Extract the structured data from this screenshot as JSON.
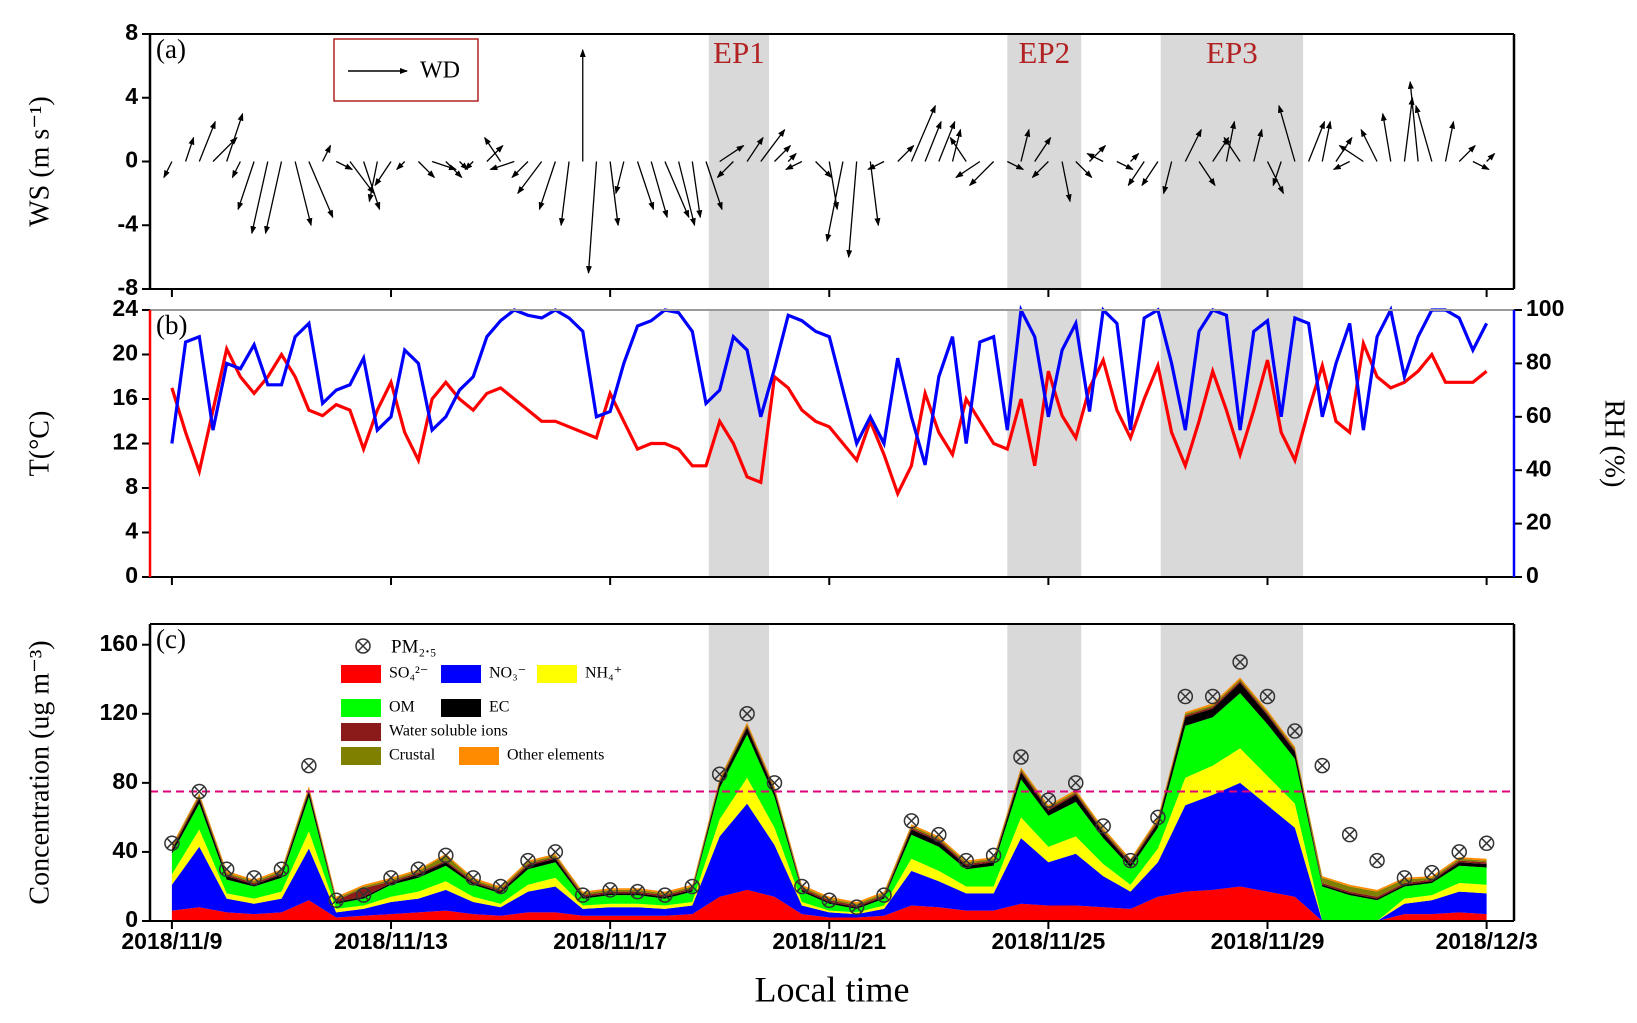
{
  "chart_data": [
    {
      "type": "arrow",
      "label": "(a)",
      "ylabel": "WS (m s⁻¹)",
      "wd_legend": "WD",
      "xlim": [
        8.6,
        33.5
      ],
      "ylim": [
        -8,
        8
      ],
      "yticks": [
        -8,
        -4,
        0,
        4,
        8
      ],
      "shaded": [
        {
          "label": "EP1",
          "start": 18.8,
          "end": 19.9
        },
        {
          "label": "EP2",
          "start": 24.25,
          "end": 25.6
        },
        {
          "label": "EP3",
          "start": 27.05,
          "end": 29.65
        }
      ],
      "x": [
        9,
        9.25,
        9.5,
        9.75,
        10,
        10.25,
        10.5,
        10.75,
        11,
        11.25,
        11.5,
        11.75,
        12,
        12.25,
        12.5,
        12.75,
        13,
        13.25,
        13.5,
        13.75,
        14,
        14.25,
        14.5,
        14.75,
        15,
        15.25,
        15.5,
        15.75,
        16,
        16.25,
        16.5,
        16.75,
        17,
        17.25,
        17.5,
        17.75,
        18,
        18.25,
        18.5,
        18.75,
        19,
        19.25,
        19.5,
        19.75,
        20,
        20.25,
        20.5,
        20.75,
        21,
        21.25,
        21.5,
        21.75,
        22,
        22.25,
        22.5,
        22.75,
        23,
        23.25,
        23.5,
        23.75,
        24,
        24.25,
        24.5,
        24.75,
        25,
        25.25,
        25.5,
        25.75,
        26,
        26.25,
        26.5,
        26.75,
        27,
        27.25,
        27.5,
        27.75,
        28,
        28.25,
        28.5,
        28.75,
        29,
        29.25,
        29.5,
        29.75,
        30,
        30.25,
        30.5,
        30.75,
        31,
        31.25,
        31.5,
        31.75,
        32,
        32.25,
        32.5,
        32.75,
        33
      ],
      "values": [
        -1,
        1.5,
        2.5,
        1.5,
        3,
        -1,
        -3,
        -4.5,
        -4.5,
        -4,
        -3.5,
        1,
        -0.5,
        -2,
        -3,
        -2.5,
        -1.5,
        -0.5,
        -1,
        -0.5,
        -1,
        -0.5,
        -0.5,
        1,
        1.5,
        -0.5,
        -1,
        -2,
        -3,
        -4,
        7,
        -7,
        -4,
        -2,
        -3,
        -3.5,
        -3.5,
        -4,
        -3.5,
        -3,
        1,
        -1,
        1.5,
        2,
        1,
        0.5,
        -0.5,
        -1,
        -3,
        -5,
        -6,
        -4,
        -0.5,
        1,
        3.5,
        2.5,
        2.5,
        2,
        1.5,
        -1,
        -1.5,
        -0.5,
        2,
        1.5,
        -1,
        -2.5,
        -1,
        1,
        0.5,
        -0.5,
        0.5,
        -1.5,
        -1.5,
        -2,
        2,
        -1.5,
        1.5,
        2.5,
        1.5,
        2,
        -2,
        -1.5,
        3.5,
        2.5,
        2.5,
        1.5,
        -0.5,
        1,
        2,
        3,
        4,
        5,
        3.5,
        2.5,
        1,
        -0.5,
        0.5
      ],
      "u": [
        -0.5,
        0.5,
        1,
        1.5,
        1,
        -0.5,
        -1,
        -1,
        -1,
        1,
        1.5,
        0.5,
        1,
        1.5,
        1,
        -0.5,
        -1,
        -0.5,
        1,
        1.5,
        1,
        0.5,
        -0.5,
        1,
        -1,
        -1.5,
        -1,
        -1.5,
        -1,
        -0.5,
        0,
        -0.5,
        0.5,
        -0.5,
        1,
        1,
        1.5,
        1,
        0.5,
        1,
        1.5,
        -1,
        1,
        1.5,
        1,
        0.5,
        -1,
        1,
        0.5,
        -1,
        -0.5,
        0.5,
        -1,
        1,
        1.5,
        1,
        1,
        0.5,
        -1,
        -1.5,
        -1.5,
        1,
        0.5,
        1,
        -1,
        0.5,
        1,
        1,
        -1,
        1,
        0.5,
        -1,
        -1,
        -0.5,
        1,
        1,
        1,
        0.5,
        -1,
        0.5,
        1,
        -0.5,
        -1,
        1,
        0.5,
        1,
        -1,
        -1.5,
        -1,
        -0.5,
        0.5,
        -0.5,
        -1,
        0.5,
        1,
        1,
        0.5
      ]
    },
    {
      "type": "line",
      "label": "(b)",
      "ylabel": "T(°C)",
      "y2label": "RH (%)",
      "xlim": [
        8.6,
        33.5
      ],
      "ylim": [
        0,
        24
      ],
      "yticks": [
        0,
        4,
        8,
        12,
        16,
        20,
        24
      ],
      "y2lim": [
        0,
        100
      ],
      "y2ticks": [
        0,
        20,
        40,
        60,
        80,
        100
      ],
      "x": [
        9,
        9.25,
        9.5,
        9.75,
        10,
        10.25,
        10.5,
        10.75,
        11,
        11.25,
        11.5,
        11.75,
        12,
        12.25,
        12.5,
        12.75,
        13,
        13.25,
        13.5,
        13.75,
        14,
        14.25,
        14.5,
        14.75,
        15,
        15.25,
        15.5,
        15.75,
        16,
        16.25,
        16.5,
        16.75,
        17,
        17.25,
        17.5,
        17.75,
        18,
        18.25,
        18.5,
        18.75,
        19,
        19.25,
        19.5,
        19.75,
        20,
        20.25,
        20.5,
        20.75,
        21,
        21.25,
        21.5,
        21.75,
        22,
        22.25,
        22.5,
        22.75,
        23,
        23.25,
        23.5,
        23.75,
        24,
        24.25,
        24.5,
        24.75,
        25,
        25.25,
        25.5,
        25.75,
        26,
        26.25,
        26.5,
        26.75,
        27,
        27.25,
        27.5,
        27.75,
        28,
        28.25,
        28.5,
        28.75,
        29,
        29.25,
        29.5,
        29.75,
        30,
        30.25,
        30.5,
        30.75,
        31,
        31.25,
        31.5,
        31.75,
        32,
        32.25,
        32.5,
        32.75,
        33
      ],
      "series": [
        {
          "color": "#ff0000",
          "values": [
            17,
            13,
            9.5,
            15,
            20.5,
            18,
            16.5,
            18,
            20,
            18,
            15,
            14.5,
            15.5,
            15,
            11.5,
            15,
            17.5,
            13,
            10.5,
            16,
            17.5,
            16,
            15,
            16.5,
            17,
            16,
            15,
            14,
            14,
            13.5,
            13,
            12.5,
            16.5,
            14,
            11.5,
            12,
            12,
            11.5,
            10,
            10,
            14,
            12,
            9,
            8.5,
            18,
            17,
            15,
            14,
            13.5,
            12,
            10.5,
            14,
            11,
            7.5,
            10,
            16.5,
            13,
            11,
            16,
            14,
            12,
            11.5,
            16,
            10,
            18.5,
            14.5,
            12.5,
            17,
            19.5,
            15,
            12.5,
            16,
            19,
            13,
            10,
            14,
            18.5,
            15,
            11,
            15,
            19.5,
            13,
            10.5,
            15,
            19,
            14,
            13,
            21,
            18,
            17,
            17.5,
            18.5,
            20,
            17.5,
            17.5,
            17.5,
            18.5
          ]
        },
        {
          "color": "#0000ff",
          "axis": "y2",
          "values": [
            50,
            88,
            90,
            55,
            80,
            78,
            87,
            72,
            72,
            90,
            95,
            65,
            70,
            72,
            82,
            55,
            60,
            85,
            80,
            55,
            60,
            70,
            75,
            90,
            96,
            100,
            98,
            97,
            100,
            97,
            92,
            60,
            62,
            80,
            94,
            96,
            100,
            99,
            92,
            65,
            70,
            90,
            85,
            60,
            78,
            98,
            96,
            92,
            90,
            70,
            50,
            60,
            50,
            82,
            60,
            42,
            75,
            90,
            50,
            88,
            90,
            55,
            100,
            90,
            60,
            85,
            95,
            62,
            100,
            95,
            55,
            97,
            100,
            80,
            55,
            92,
            100,
            98,
            55,
            92,
            96,
            60,
            97,
            95,
            60,
            80,
            95,
            55,
            90,
            100,
            75,
            90,
            100,
            100,
            97,
            85,
            95
          ]
        }
      ]
    },
    {
      "type": "area",
      "label": "(c)",
      "ylabel": "Concentration (ug m⁻³)",
      "xlabel": "Local time",
      "xlim": [
        8.6,
        33.5
      ],
      "ylim": [
        0,
        172
      ],
      "yticks": [
        0,
        40,
        80,
        120,
        160
      ],
      "threshold": 75,
      "xticks": [
        {
          "value": 9,
          "label": "2018/11/9"
        },
        {
          "value": 13,
          "label": "2018/11/13"
        },
        {
          "value": 17,
          "label": "2018/11/17"
        },
        {
          "value": 21,
          "label": "2018/11/21"
        },
        {
          "value": 25,
          "label": "2018/11/25"
        },
        {
          "value": 29,
          "label": "2018/11/29"
        },
        {
          "value": 33,
          "label": "2018/12/3"
        }
      ],
      "x": [
        9,
        9.5,
        10,
        10.5,
        11,
        11.5,
        12,
        12.5,
        13,
        13.5,
        14,
        14.5,
        15,
        15.5,
        16,
        16.5,
        17,
        17.5,
        18,
        18.5,
        19,
        19.5,
        20,
        20.5,
        21,
        21.5,
        22,
        22.5,
        23,
        23.5,
        24,
        24.5,
        25,
        25.5,
        26,
        26.5,
        27,
        27.5,
        28,
        28.5,
        29,
        29.5,
        30,
        30.5,
        31,
        31.5,
        32,
        32.5,
        33
      ],
      "pm25": {
        "name": "PM₂.₅",
        "values": [
          45,
          75,
          30,
          25,
          30,
          90,
          12,
          15,
          25,
          30,
          38,
          25,
          20,
          35,
          40,
          15,
          18,
          17,
          15,
          20,
          85,
          120,
          80,
          20,
          12,
          8,
          15,
          58,
          50,
          35,
          38,
          95,
          70,
          80,
          55,
          35,
          60,
          130,
          130,
          150,
          130,
          110,
          90,
          50,
          35,
          25,
          28,
          40,
          45
        ]
      },
      "series": [
        {
          "name": "SO₄²⁻",
          "color": "#ff0000",
          "values": [
            6,
            8,
            5,
            4,
            5,
            12,
            2,
            3,
            4,
            5,
            6,
            4,
            3,
            5,
            5,
            3,
            3,
            3,
            3,
            4,
            14,
            18,
            14,
            4,
            2,
            2,
            3,
            9,
            8,
            6,
            6,
            10,
            9,
            9,
            8,
            7,
            14,
            17,
            18,
            20,
            17,
            14,
            0,
            0,
            0,
            4,
            4,
            5,
            4
          ]
        },
        {
          "name": "NO₃⁻",
          "color": "#0000ff",
          "values": [
            15,
            35,
            8,
            6,
            8,
            30,
            3,
            4,
            7,
            8,
            12,
            7,
            5,
            12,
            15,
            4,
            5,
            5,
            4,
            5,
            35,
            50,
            30,
            5,
            3,
            2,
            4,
            20,
            15,
            10,
            10,
            38,
            25,
            30,
            18,
            10,
            20,
            50,
            55,
            60,
            50,
            40,
            0,
            0,
            0,
            6,
            8,
            12,
            12
          ]
        },
        {
          "name": "NH₄⁺",
          "color": "#ffff00",
          "values": [
            6,
            10,
            3,
            3,
            4,
            10,
            2,
            2,
            3,
            4,
            5,
            3,
            2,
            4,
            5,
            2,
            2,
            2,
            2,
            2,
            10,
            15,
            10,
            2,
            1,
            1,
            2,
            7,
            6,
            4,
            4,
            12,
            9,
            10,
            7,
            4,
            8,
            16,
            17,
            20,
            17,
            14,
            0,
            0,
            0,
            3,
            3,
            5,
            5
          ]
        },
        {
          "name": "OM",
          "color": "#00ff00",
          "values": [
            12,
            15,
            8,
            7,
            8,
            20,
            3,
            4,
            7,
            8,
            9,
            7,
            6,
            9,
            9,
            4,
            5,
            5,
            4,
            6,
            18,
            25,
            18,
            6,
            4,
            2,
            4,
            14,
            14,
            10,
            12,
            22,
            18,
            20,
            15,
            10,
            12,
            30,
            28,
            32,
            30,
            26,
            20,
            15,
            12,
            7,
            7,
            10,
            10
          ]
        },
        {
          "name": "EC",
          "color": "#000000",
          "values": [
            2,
            3,
            2,
            1,
            2,
            3,
            1,
            1,
            1,
            2,
            2,
            1,
            1,
            2,
            2,
            1,
            1,
            1,
            1,
            1,
            3,
            4,
            3,
            1,
            1,
            1,
            1,
            3,
            3,
            2,
            2,
            4,
            3,
            4,
            3,
            2,
            3,
            5,
            5,
            6,
            5,
            4,
            1,
            1,
            1,
            1,
            1,
            2,
            2
          ]
        },
        {
          "name": "Water soluble ions",
          "color": "#8b1a1a",
          "values": [
            1,
            1,
            1,
            1,
            1,
            1,
            1,
            5,
            1,
            1,
            1,
            1,
            1,
            1,
            1,
            1,
            1,
            1,
            1,
            1,
            1,
            1,
            1,
            1,
            1,
            1,
            1,
            1,
            1,
            1,
            1,
            1,
            1,
            1,
            1,
            1,
            1,
            1,
            1,
            1,
            1,
            1,
            1,
            1,
            1,
            1,
            1,
            1,
            1
          ]
        },
        {
          "name": "Crustal",
          "color": "#808000",
          "values": [
            1,
            1,
            1,
            1,
            1,
            1,
            1,
            1,
            1,
            1,
            3,
            1,
            1,
            1,
            1,
            1,
            1,
            1,
            1,
            1,
            1,
            1,
            1,
            1,
            1,
            1,
            1,
            1,
            1,
            1,
            1,
            1,
            1,
            1,
            1,
            1,
            1,
            1,
            1,
            1,
            1,
            1,
            3,
            3,
            3,
            2,
            1,
            1,
            1
          ]
        },
        {
          "name": "Other elements",
          "color": "#ff8c00",
          "values": [
            1,
            1,
            1,
            1,
            1,
            1,
            1,
            1,
            1,
            1,
            1,
            1,
            1,
            1,
            1,
            1,
            1,
            1,
            1,
            1,
            1,
            1,
            1,
            1,
            1,
            1,
            1,
            1,
            1,
            1,
            1,
            1,
            1,
            1,
            1,
            1,
            1,
            1,
            1,
            1,
            1,
            1,
            1,
            1,
            1,
            1,
            1,
            1,
            1
          ]
        }
      ]
    }
  ]
}
